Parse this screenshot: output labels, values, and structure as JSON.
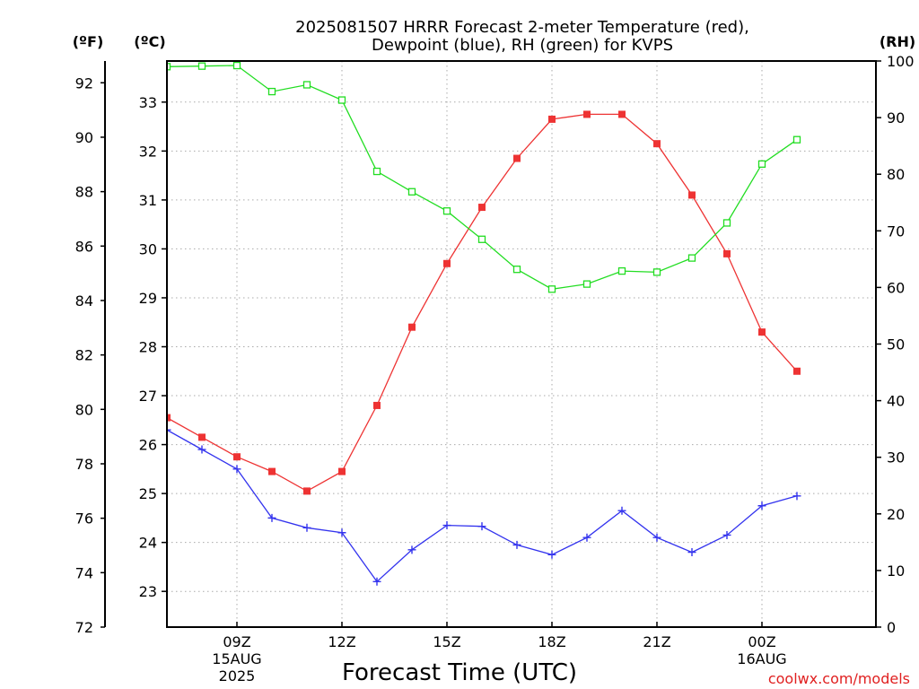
{
  "chart_data": {
    "type": "line",
    "title_lines": [
      "2025081507 HRRR Forecast 2-meter Temperature (red),",
      "Dewpoint (blue), RH (green) for KVPS"
    ],
    "xlabel": "Forecast Time (UTC)",
    "credit": "coolwx.com/models",
    "units": {
      "left_outer": "(ºF)",
      "left_inner": "(ºC)",
      "right": "(RH)"
    },
    "x_range_hours": [
      7,
      24
    ],
    "x_ticks": [
      {
        "hour": 9,
        "lines": [
          "09Z",
          "15AUG",
          "2025"
        ]
      },
      {
        "hour": 12,
        "lines": [
          "12Z"
        ]
      },
      {
        "hour": 15,
        "lines": [
          "15Z"
        ]
      },
      {
        "hour": 18,
        "lines": [
          "18Z"
        ]
      },
      {
        "hour": 21,
        "lines": [
          "21Z"
        ]
      },
      {
        "hour": 24,
        "lines": [
          "00Z",
          "16AUG"
        ]
      }
    ],
    "y_celsius": {
      "range": [
        22.27,
        33.84
      ],
      "ticks": [
        23,
        24,
        25,
        26,
        27,
        28,
        29,
        30,
        31,
        32,
        33
      ]
    },
    "y_fahrenheit": {
      "range": [
        72,
        92.8
      ],
      "ticks": [
        72,
        74,
        76,
        78,
        80,
        82,
        84,
        86,
        88,
        90,
        92
      ]
    },
    "y_rh": {
      "range": [
        0,
        100
      ],
      "ticks": [
        0,
        10,
        20,
        30,
        40,
        50,
        60,
        70,
        80,
        90,
        100
      ]
    },
    "grid": true,
    "x_hours": [
      7,
      8,
      9,
      10,
      11,
      12,
      13,
      14,
      15,
      16,
      17,
      18,
      19,
      20,
      21,
      22,
      23,
      24,
      25
    ],
    "series": [
      {
        "name": "Temperature",
        "unit": "C",
        "color": "#ee3333",
        "marker": "filled-square",
        "values": [
          26.55,
          26.15,
          25.75,
          25.45,
          25.05,
          25.45,
          26.8,
          28.4,
          29.7,
          30.85,
          31.85,
          32.65,
          32.75,
          32.75,
          32.15,
          31.1,
          29.9,
          28.3,
          27.5
        ]
      },
      {
        "name": "Dewpoint",
        "unit": "C",
        "color": "#3333ee",
        "marker": "plus",
        "values": [
          26.3,
          25.9,
          25.5,
          24.5,
          24.3,
          24.2,
          23.2,
          23.85,
          24.35,
          24.33,
          23.95,
          23.75,
          24.1,
          24.65,
          24.1,
          23.8,
          24.15,
          24.75,
          24.95
        ]
      },
      {
        "name": "RH",
        "unit": "%",
        "color": "#22dd22",
        "marker": "open-square",
        "values": [
          99.0,
          99.1,
          99.2,
          94.6,
          95.8,
          93.1,
          80.5,
          76.9,
          73.5,
          68.5,
          63.2,
          59.7,
          60.6,
          62.9,
          62.7,
          65.2,
          71.4,
          81.8,
          86.1
        ]
      }
    ]
  }
}
